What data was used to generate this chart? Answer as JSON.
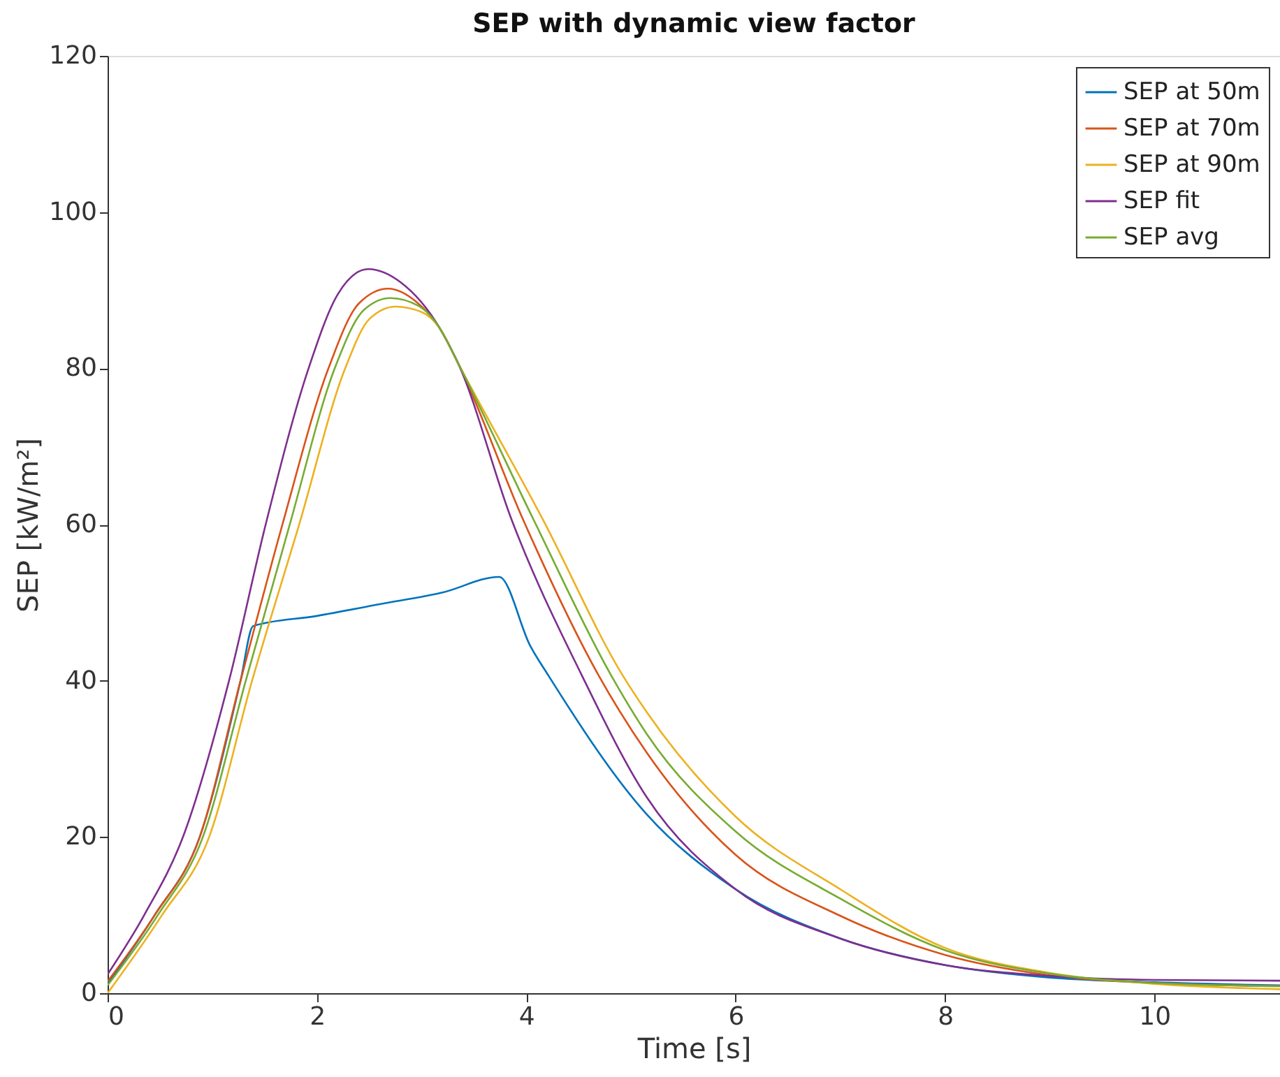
{
  "chart_data": {
    "type": "line",
    "title": "SEP with dynamic view factor",
    "xlabel": "Time [s]",
    "ylabel": "SEP [kW/m²]",
    "xlim": [
      0,
      11.2
    ],
    "xticks": [
      0,
      2,
      4,
      6,
      8,
      10
    ],
    "ylim": [
      0,
      120
    ],
    "yticks": [
      0,
      20,
      40,
      60,
      80,
      100,
      120
    ],
    "grid": false,
    "legend": "top right",
    "marker": "none",
    "line_style": "solid",
    "series": [
      {
        "name": "SEP at 50m",
        "color": "#0072bd",
        "x": [
          0,
          0.45,
          0.88,
          1.27,
          1.39,
          2.0,
          2.6,
          3.2,
          3.74,
          4.04,
          4.21,
          5.15,
          6,
          7,
          8,
          9,
          10,
          11.2
        ],
        "values": [
          1.2,
          10,
          20,
          40,
          47.0,
          48.3,
          49.8,
          51.3,
          53.3,
          44.4,
          40.7,
          22.9,
          13.3,
          7.0,
          3.6,
          2.0,
          1.4,
          1.0
        ]
      },
      {
        "name": "SEP at 70m",
        "color": "#d95319",
        "x": [
          0,
          0.45,
          0.88,
          1.27,
          1.67,
          2.11,
          2.4,
          2.68,
          2.95,
          3.17,
          3.35,
          3.97,
          4.69,
          5.15,
          6,
          7,
          8,
          9,
          10,
          11.2
        ],
        "values": [
          1.5,
          10,
          20,
          40,
          60,
          80,
          88.3,
          90.2,
          88.5,
          85.2,
          80.6,
          60.6,
          40.7,
          30.8,
          17.7,
          9.9,
          4.9,
          2.3,
          1.3,
          0.9
        ]
      },
      {
        "name": "SEP at 90m",
        "color": "#edb120",
        "x": [
          0,
          0.52,
          0.97,
          1.38,
          1.83,
          2.27,
          2.5,
          2.75,
          3.0,
          3.17,
          3.35,
          4.16,
          4.92,
          5.15,
          6,
          7,
          8,
          9,
          10,
          11.2
        ],
        "values": [
          0,
          10,
          20,
          40,
          60,
          80,
          86.3,
          87.9,
          87.2,
          85.2,
          80.6,
          60.6,
          40.7,
          36.0,
          22.6,
          13.3,
          5.8,
          2.6,
          1.2,
          0.5
        ]
      },
      {
        "name": "SEP fit",
        "color": "#7e2f8e",
        "x": [
          0,
          0.35,
          0.72,
          1.16,
          1.51,
          1.92,
          2.2,
          2.49,
          2.8,
          3.17,
          3.35,
          3.86,
          4.53,
          5.15,
          6,
          7,
          8,
          9,
          10,
          11.2
        ],
        "values": [
          2.4,
          10,
          20,
          40,
          60,
          80,
          89.5,
          92.7,
          91,
          85.2,
          80.6,
          60.6,
          40.7,
          25.1,
          13.3,
          7.0,
          3.6,
          2.2,
          1.7,
          1.6
        ]
      },
      {
        "name": "SEP avg",
        "color": "#77ac30",
        "x": [
          0,
          0.48,
          0.91,
          1.32,
          1.74,
          2.17,
          2.45,
          2.7,
          2.97,
          3.17,
          3.35,
          4.07,
          4.81,
          5.15,
          6,
          7,
          8,
          9,
          10,
          11.2
        ],
        "values": [
          1,
          10,
          20,
          40,
          60,
          80,
          87.5,
          89,
          88,
          85.2,
          80.6,
          60.6,
          40.7,
          33.2,
          20.7,
          12.1,
          5.5,
          2.5,
          1.3,
          0.9
        ]
      }
    ]
  }
}
